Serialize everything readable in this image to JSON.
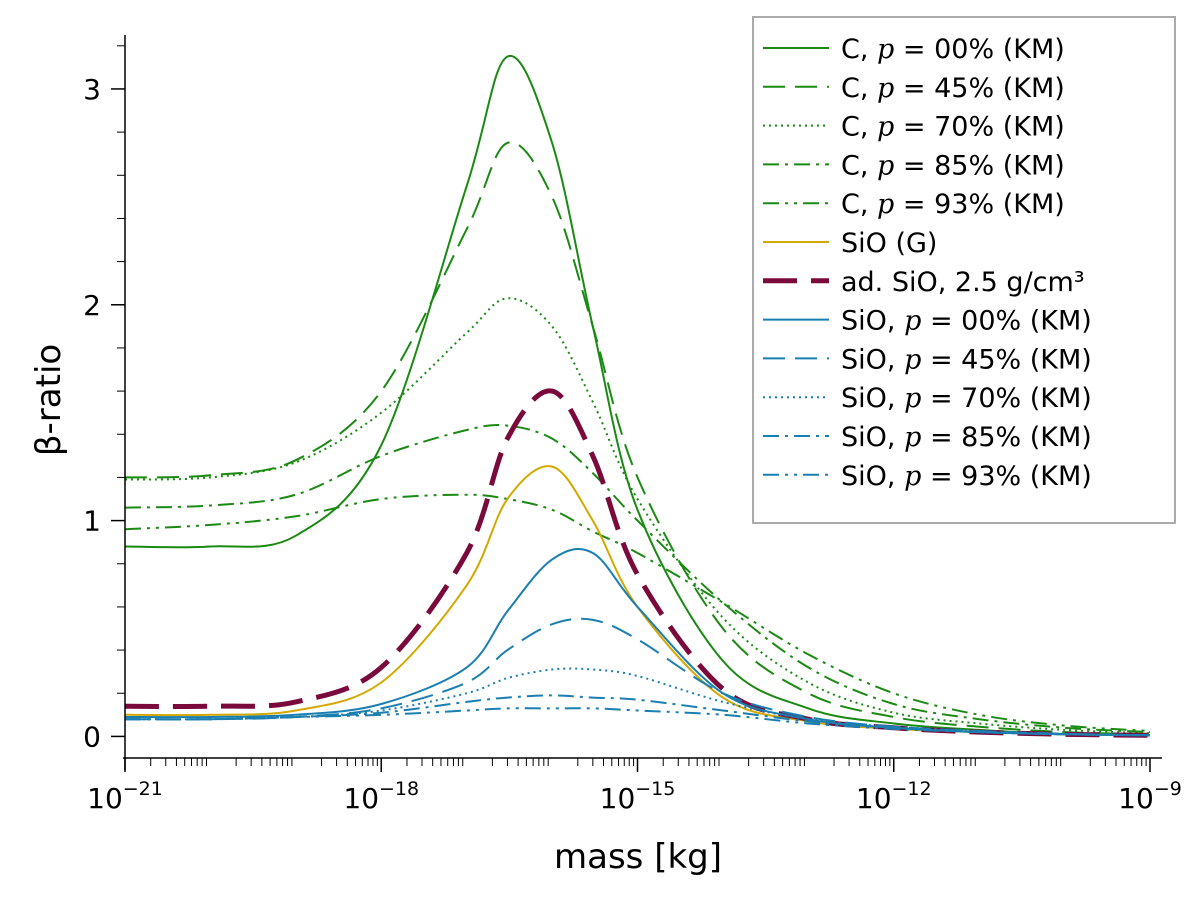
{
  "chart_data": {
    "type": "line",
    "xlabel": "mass [kg]",
    "ylabel": "β-ratio",
    "xscale": "log",
    "xlim": [
      1e-21,
      1e-09
    ],
    "ylim": [
      -0.1,
      3.25
    ],
    "x_ticks": [
      {
        "value": 1e-21,
        "base": "10",
        "exp": "−21"
      },
      {
        "value": 1e-18,
        "base": "10",
        "exp": "−18"
      },
      {
        "value": 1e-15,
        "base": "10",
        "exp": "−15"
      },
      {
        "value": 1e-12,
        "base": "10",
        "exp": "−12"
      },
      {
        "value": 1e-09,
        "base": "10",
        "exp": "−9"
      }
    ],
    "y_ticks": [
      {
        "value": 0,
        "label": "0"
      },
      {
        "value": 1,
        "label": "1"
      },
      {
        "value": 2,
        "label": "2"
      },
      {
        "value": 3,
        "label": "3"
      }
    ],
    "grid": false,
    "legend_position": "top-right",
    "x": [
      1e-21,
      1e-20,
      1e-19,
      1e-18,
      1e-17,
      3e-17,
      1e-16,
      3e-16,
      1e-15,
      1e-14,
      1e-13,
      1e-12,
      1e-11,
      1e-10,
      1e-09
    ],
    "series": [
      {
        "name_prefix": "C, ",
        "name_var": "p",
        "name_suffix": " = 00% (KM)",
        "color": "#1a8a12",
        "dash": "solid",
        "width": 2,
        "values": [
          0.88,
          0.88,
          0.93,
          1.35,
          2.55,
          3.15,
          2.75,
          1.9,
          1.05,
          0.35,
          0.13,
          0.06,
          0.03,
          0.01,
          0.005
        ]
      },
      {
        "name_prefix": "C, ",
        "name_var": "p",
        "name_suffix": " = 45% (KM)",
        "color": "#1a8a12",
        "dash": "longdash",
        "width": 2,
        "values": [
          1.2,
          1.21,
          1.28,
          1.6,
          2.35,
          2.75,
          2.5,
          1.9,
          1.2,
          0.5,
          0.2,
          0.09,
          0.045,
          0.02,
          0.01
        ]
      },
      {
        "name_prefix": "C, ",
        "name_var": "p",
        "name_suffix": " = 70% (KM)",
        "color": "#1a8a12",
        "dash": "dotted",
        "width": 2,
        "values": [
          1.19,
          1.2,
          1.27,
          1.5,
          1.87,
          2.03,
          1.9,
          1.55,
          1.1,
          0.55,
          0.25,
          0.11,
          0.06,
          0.03,
          0.015
        ]
      },
      {
        "name_prefix": "C, ",
        "name_var": "p",
        "name_suffix": " = 85% (KM)",
        "color": "#1a8a12",
        "dash": "dashdot",
        "width": 2,
        "values": [
          1.06,
          1.07,
          1.12,
          1.3,
          1.42,
          1.44,
          1.38,
          1.22,
          1.0,
          0.62,
          0.32,
          0.15,
          0.08,
          0.04,
          0.02
        ]
      },
      {
        "name_prefix": "C, ",
        "name_var": "p",
        "name_suffix": " = 93% (KM)",
        "color": "#1a8a12",
        "dash": "dashdotdot",
        "width": 2,
        "values": [
          0.96,
          0.98,
          1.02,
          1.1,
          1.12,
          1.1,
          1.05,
          0.95,
          0.85,
          0.62,
          0.38,
          0.2,
          0.1,
          0.05,
          0.025
        ]
      },
      {
        "name": "SiO (G)",
        "color": "#d4a800",
        "dash": "solid",
        "width": 2,
        "values": [
          0.1,
          0.1,
          0.12,
          0.25,
          0.7,
          1.1,
          1.25,
          1.0,
          0.6,
          0.18,
          0.07,
          0.035,
          0.02,
          0.01,
          0.005
        ]
      },
      {
        "name": "ad. SiO, 2.5 g/cm³",
        "color": "#7a0a3c",
        "dash": "bigdash",
        "width": 5,
        "values": [
          0.14,
          0.14,
          0.16,
          0.32,
          0.85,
          1.38,
          1.6,
          1.3,
          0.75,
          0.22,
          0.08,
          0.04,
          0.02,
          0.01,
          0.005
        ]
      },
      {
        "name_prefix": "SiO, ",
        "name_var": "p",
        "name_suffix": " = 00% (KM)",
        "color": "#1a7fb0",
        "dash": "solid",
        "width": 2,
        "values": [
          0.09,
          0.09,
          0.1,
          0.15,
          0.32,
          0.58,
          0.82,
          0.85,
          0.6,
          0.2,
          0.08,
          0.04,
          0.02,
          0.01,
          0.005
        ]
      },
      {
        "name_prefix": "SiO, ",
        "name_var": "p",
        "name_suffix": " = 45% (KM)",
        "color": "#1a7fb0",
        "dash": "longdash",
        "width": 2,
        "values": [
          0.08,
          0.08,
          0.09,
          0.13,
          0.25,
          0.4,
          0.52,
          0.54,
          0.45,
          0.2,
          0.09,
          0.045,
          0.025,
          0.012,
          0.006
        ]
      },
      {
        "name_prefix": "SiO, ",
        "name_var": "p",
        "name_suffix": " = 70% (KM)",
        "color": "#1a7fb0",
        "dash": "dotted",
        "width": 2,
        "values": [
          0.08,
          0.08,
          0.09,
          0.12,
          0.2,
          0.27,
          0.31,
          0.31,
          0.28,
          0.16,
          0.08,
          0.045,
          0.025,
          0.012,
          0.006
        ]
      },
      {
        "name_prefix": "SiO, ",
        "name_var": "p",
        "name_suffix": " = 85% (KM)",
        "color": "#1a7fb0",
        "dash": "dashdot",
        "width": 2,
        "values": [
          0.08,
          0.08,
          0.09,
          0.11,
          0.16,
          0.18,
          0.19,
          0.18,
          0.17,
          0.12,
          0.07,
          0.04,
          0.02,
          0.01,
          0.005
        ]
      },
      {
        "name_prefix": "SiO, ",
        "name_var": "p",
        "name_suffix": " = 93% (KM)",
        "color": "#1a7fb0",
        "dash": "dashdotdot",
        "width": 2,
        "values": [
          0.08,
          0.08,
          0.09,
          0.1,
          0.12,
          0.13,
          0.13,
          0.13,
          0.12,
          0.1,
          0.06,
          0.035,
          0.02,
          0.01,
          0.005
        ]
      }
    ]
  }
}
